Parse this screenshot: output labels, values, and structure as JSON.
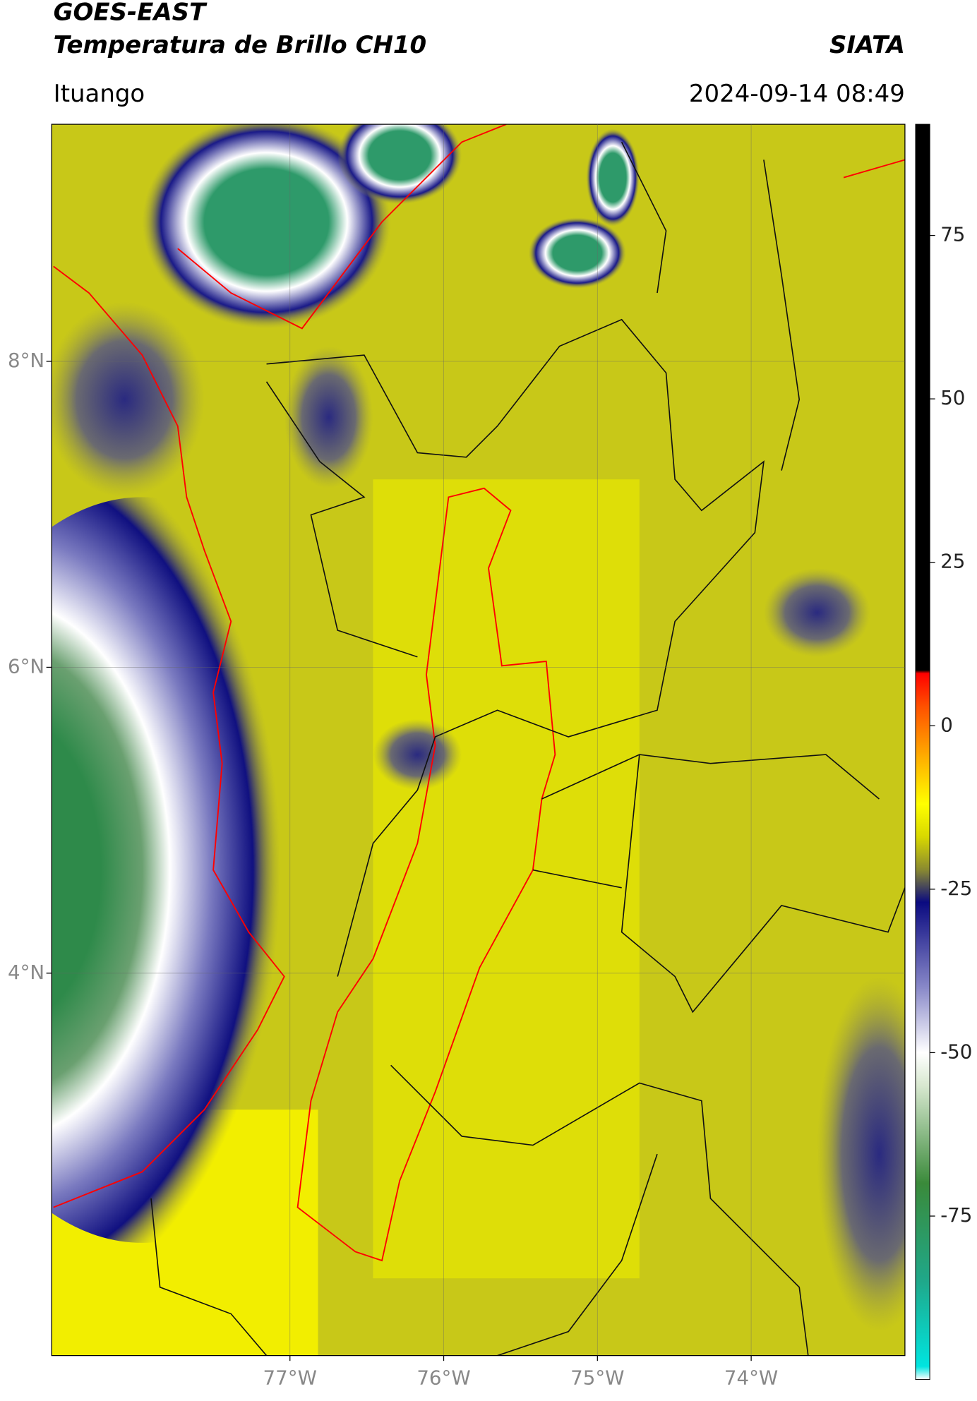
{
  "header": {
    "title": "GOES-EAST",
    "subtitle": "Temperatura de Brillo CH10",
    "source": "SIATA",
    "location": "Ituango",
    "datetime": "2024-09-14 08:49"
  },
  "map": {
    "xlim": [
      -78.55,
      -73
    ],
    "ylim": [
      1.5,
      9.55
    ],
    "xticks": [
      {
        "value": -77,
        "label": "77°W"
      },
      {
        "value": -76,
        "label": "76°W"
      },
      {
        "value": -75,
        "label": "75°W"
      },
      {
        "value": -74,
        "label": "74°W"
      }
    ],
    "yticks": [
      {
        "value": 8,
        "label": "8°N"
      },
      {
        "value": 6,
        "label": "6°N"
      },
      {
        "value": 4,
        "label": "4°N"
      }
    ],
    "grid": true
  },
  "colorbar": {
    "lim": [
      -100,
      92
    ],
    "ticks": [
      75,
      50,
      25,
      0,
      -25,
      -50,
      -75
    ],
    "stops": [
      [
        -100,
        "#ffffff"
      ],
      [
        -98,
        "#00e5e0"
      ],
      [
        -85,
        "#1fa88a"
      ],
      [
        -70,
        "#3a8a3a"
      ],
      [
        -55,
        "#d8e8d0"
      ],
      [
        -50,
        "#ffffff"
      ],
      [
        -40,
        "#8888c8"
      ],
      [
        -27,
        "#0a0a80"
      ],
      [
        -22,
        "#8a8a30"
      ],
      [
        -17,
        "#d8d800"
      ],
      [
        -12,
        "#ffff00"
      ],
      [
        -5,
        "#ffb000"
      ],
      [
        3,
        "#ff5000"
      ],
      [
        8,
        "#ff0000"
      ],
      [
        8.5,
        "#000000"
      ],
      [
        92,
        "#000000"
      ]
    ]
  }
}
